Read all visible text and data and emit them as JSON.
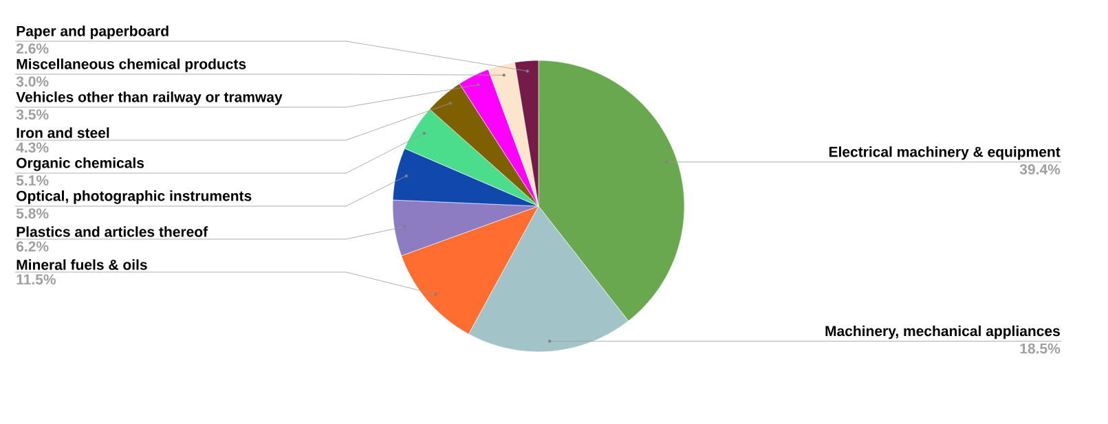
{
  "chart_data": {
    "type": "pie",
    "categories": [
      "Electrical machinery & equipment",
      "Machinery, mechanical appliances",
      "Mineral fuels & oils",
      "Plastics and articles thereof",
      "Optical, photographic instruments",
      "Organic chemicals",
      "Iron and steel",
      "Vehicles other than railway or tramway",
      "Miscellaneous chemical products",
      "Paper and paperboard"
    ],
    "values": [
      39.4,
      18.5,
      11.5,
      6.2,
      5.8,
      5.1,
      4.3,
      3.5,
      3.0,
      2.6
    ],
    "colors": [
      "#6aa84f",
      "#a2c4c9",
      "#ff6d31",
      "#8e7cc3",
      "#1048ad",
      "#4cdd8c",
      "#7f6000",
      "#ff00ff",
      "#fce5cd",
      "#741b47"
    ],
    "value_labels": [
      "39.4%",
      "18.5%",
      "11.5%",
      "6.2%",
      "5.8%",
      "5.1%",
      "4.3%",
      "3.5%",
      "3.0%",
      "2.6%"
    ]
  }
}
